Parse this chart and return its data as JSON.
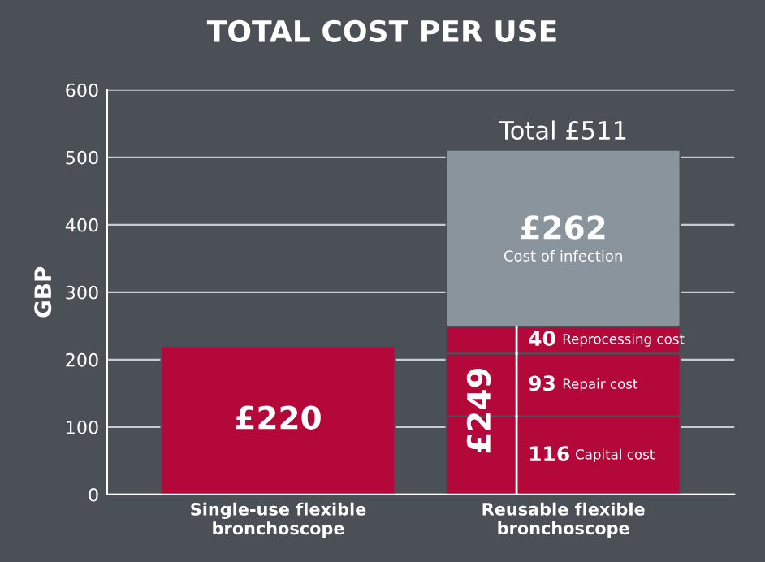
{
  "chart_data": {
    "type": "bar",
    "stacked": true,
    "title": "TOTAL COST PER USE",
    "ylabel": "GBP",
    "categories": [
      "Single-use flexible\nbronchoscope",
      "Reusable flexible\nbronchoscope"
    ],
    "series": [
      {
        "color": "#b5083a",
        "values": [
          220,
          null
        ],
        "value_labels": [
          "£220",
          null
        ]
      },
      {
        "name": "Capital cost",
        "color": "#b5083a",
        "values": [
          null,
          116
        ],
        "value_labels": [
          null,
          "116"
        ]
      },
      {
        "name": "Repair cost",
        "color": "#b5083a",
        "values": [
          null,
          93
        ],
        "value_labels": [
          null,
          "93"
        ]
      },
      {
        "name": "Reprocessing cost",
        "color": "#b5083a",
        "values": [
          null,
          40
        ],
        "value_labels": [
          null,
          "40"
        ]
      },
      {
        "name": "Cost of infection",
        "color": "#8a949c",
        "values": [
          null,
          262
        ],
        "value_labels": [
          null,
          "£262"
        ]
      }
    ],
    "totals": [
      null,
      "Total £511"
    ],
    "annotations": [
      {
        "text": "£249",
        "x": "Reusable flexible\nbronchoscope",
        "y": 124.5
      }
    ],
    "ylim": [
      0,
      600
    ],
    "yticks": [
      0,
      100,
      200,
      300,
      400,
      500,
      600
    ],
    "grid": "y",
    "legend": false
  }
}
